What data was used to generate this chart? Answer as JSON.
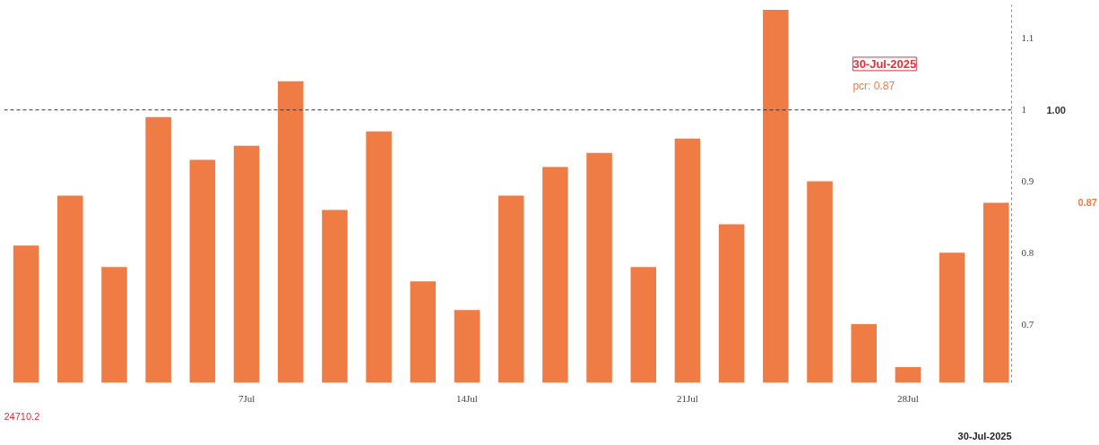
{
  "chart_data": {
    "type": "bar",
    "categories": [
      null,
      null,
      null,
      null,
      null,
      "7Jul",
      null,
      null,
      null,
      null,
      "14Jul",
      null,
      null,
      null,
      null,
      "21Jul",
      null,
      null,
      null,
      null,
      "28Jul",
      null,
      null
    ],
    "series": [
      {
        "color": "#ef7b45",
        "values": [
          0.81,
          0.88,
          0.78,
          0.99,
          0.93,
          0.95,
          1.04,
          0.86,
          0.97,
          0.76,
          0.72,
          0.88,
          0.92,
          0.94,
          0.78,
          0.96,
          0.84,
          1.14,
          0.9,
          0.7,
          0.64,
          0.8,
          0.87
        ]
      }
    ],
    "ylim": [
      0.618,
      1.147
    ],
    "yticks": [
      0.7,
      0.8,
      0.9,
      1,
      1.1
    ],
    "ref_lines": [
      {
        "axis": "y",
        "value": 1.0,
        "label": "1.00",
        "color": "#333333",
        "line_style": "dashed"
      }
    ],
    "annotations": [
      "30-Jul-2025",
      "pcr: 0.87",
      "24710.2",
      "30-Jul-2025",
      "0.87"
    ],
    "grid": false
  }
}
